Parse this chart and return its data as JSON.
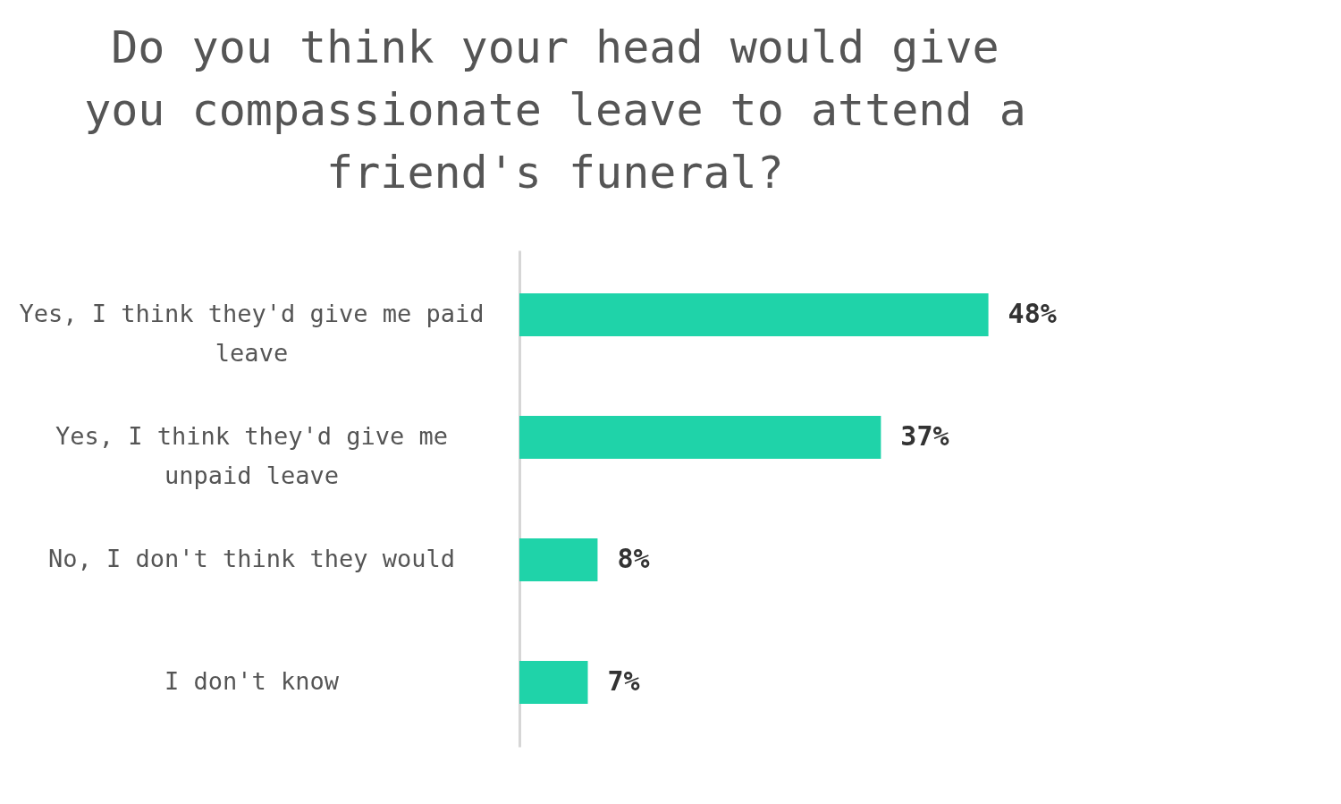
{
  "chart_data": {
    "type": "bar",
    "orientation": "horizontal",
    "title": "Do you think your head would give you compassionate leave to attend a friend's funeral?",
    "categories": [
      "Yes, I think they'd give me paid leave",
      "Yes, I think they'd give me unpaid leave",
      "No, I don't think they would",
      "I don't know"
    ],
    "values": [
      48,
      37,
      8,
      7
    ],
    "value_labels": [
      "48%",
      "37%",
      "8%",
      "7%"
    ],
    "color": "#1fd3a9",
    "grid": false,
    "tick_labels": "y"
  }
}
